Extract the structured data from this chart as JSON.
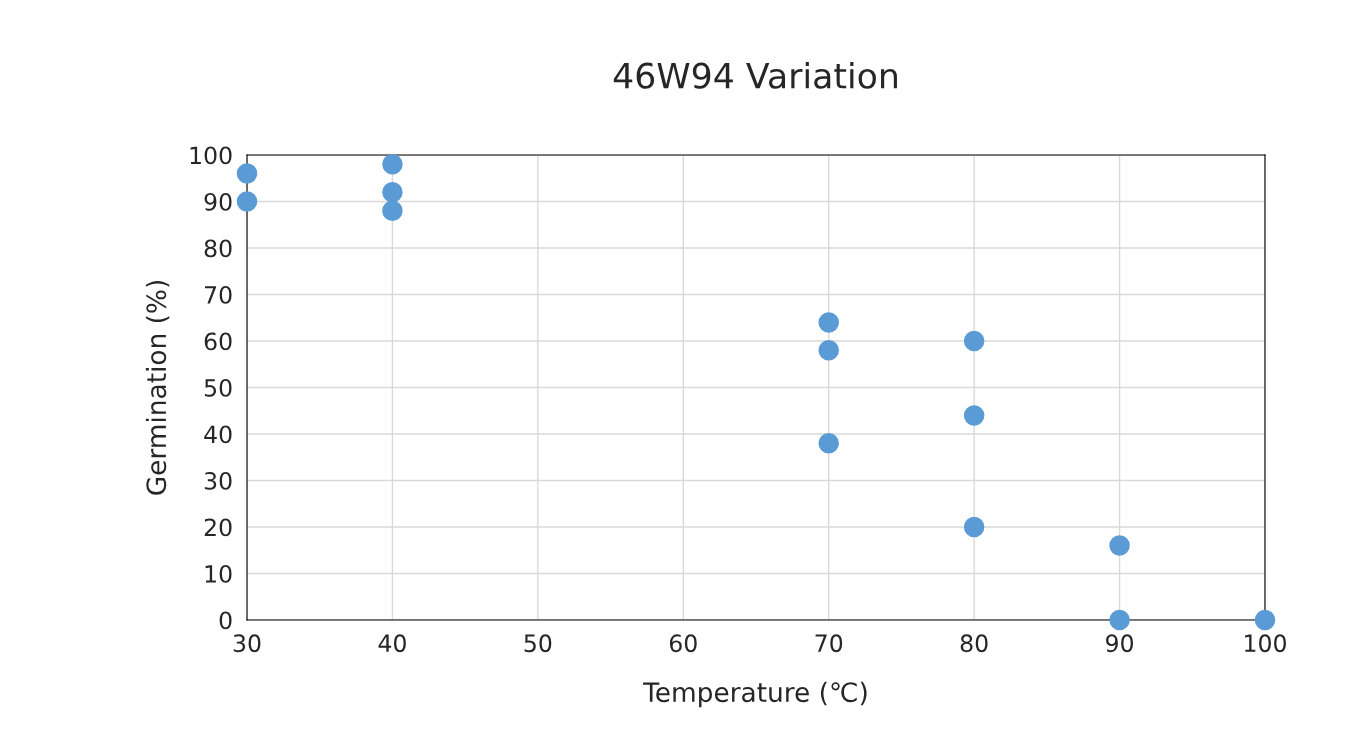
{
  "chart_data": {
    "type": "scatter",
    "title": "46W94 Variation",
    "xlabel": "Temperature (℃)",
    "ylabel": "Germination (%)",
    "x": [
      30,
      30,
      40,
      40,
      40,
      70,
      70,
      70,
      80,
      80,
      80,
      90,
      90,
      100
    ],
    "values": [
      96,
      90,
      98,
      92,
      88,
      64,
      58,
      38,
      60,
      44,
      20,
      16,
      0,
      0
    ],
    "color": "#5b9bd5",
    "marker": "circle",
    "xlim": [
      30,
      100
    ],
    "xticks": [
      30,
      40,
      50,
      60,
      70,
      80,
      90,
      100
    ],
    "ylim": [
      0,
      100
    ],
    "yticks": [
      0,
      10,
      20,
      30,
      40,
      50,
      60,
      70,
      80,
      90,
      100
    ],
    "grid": true
  }
}
